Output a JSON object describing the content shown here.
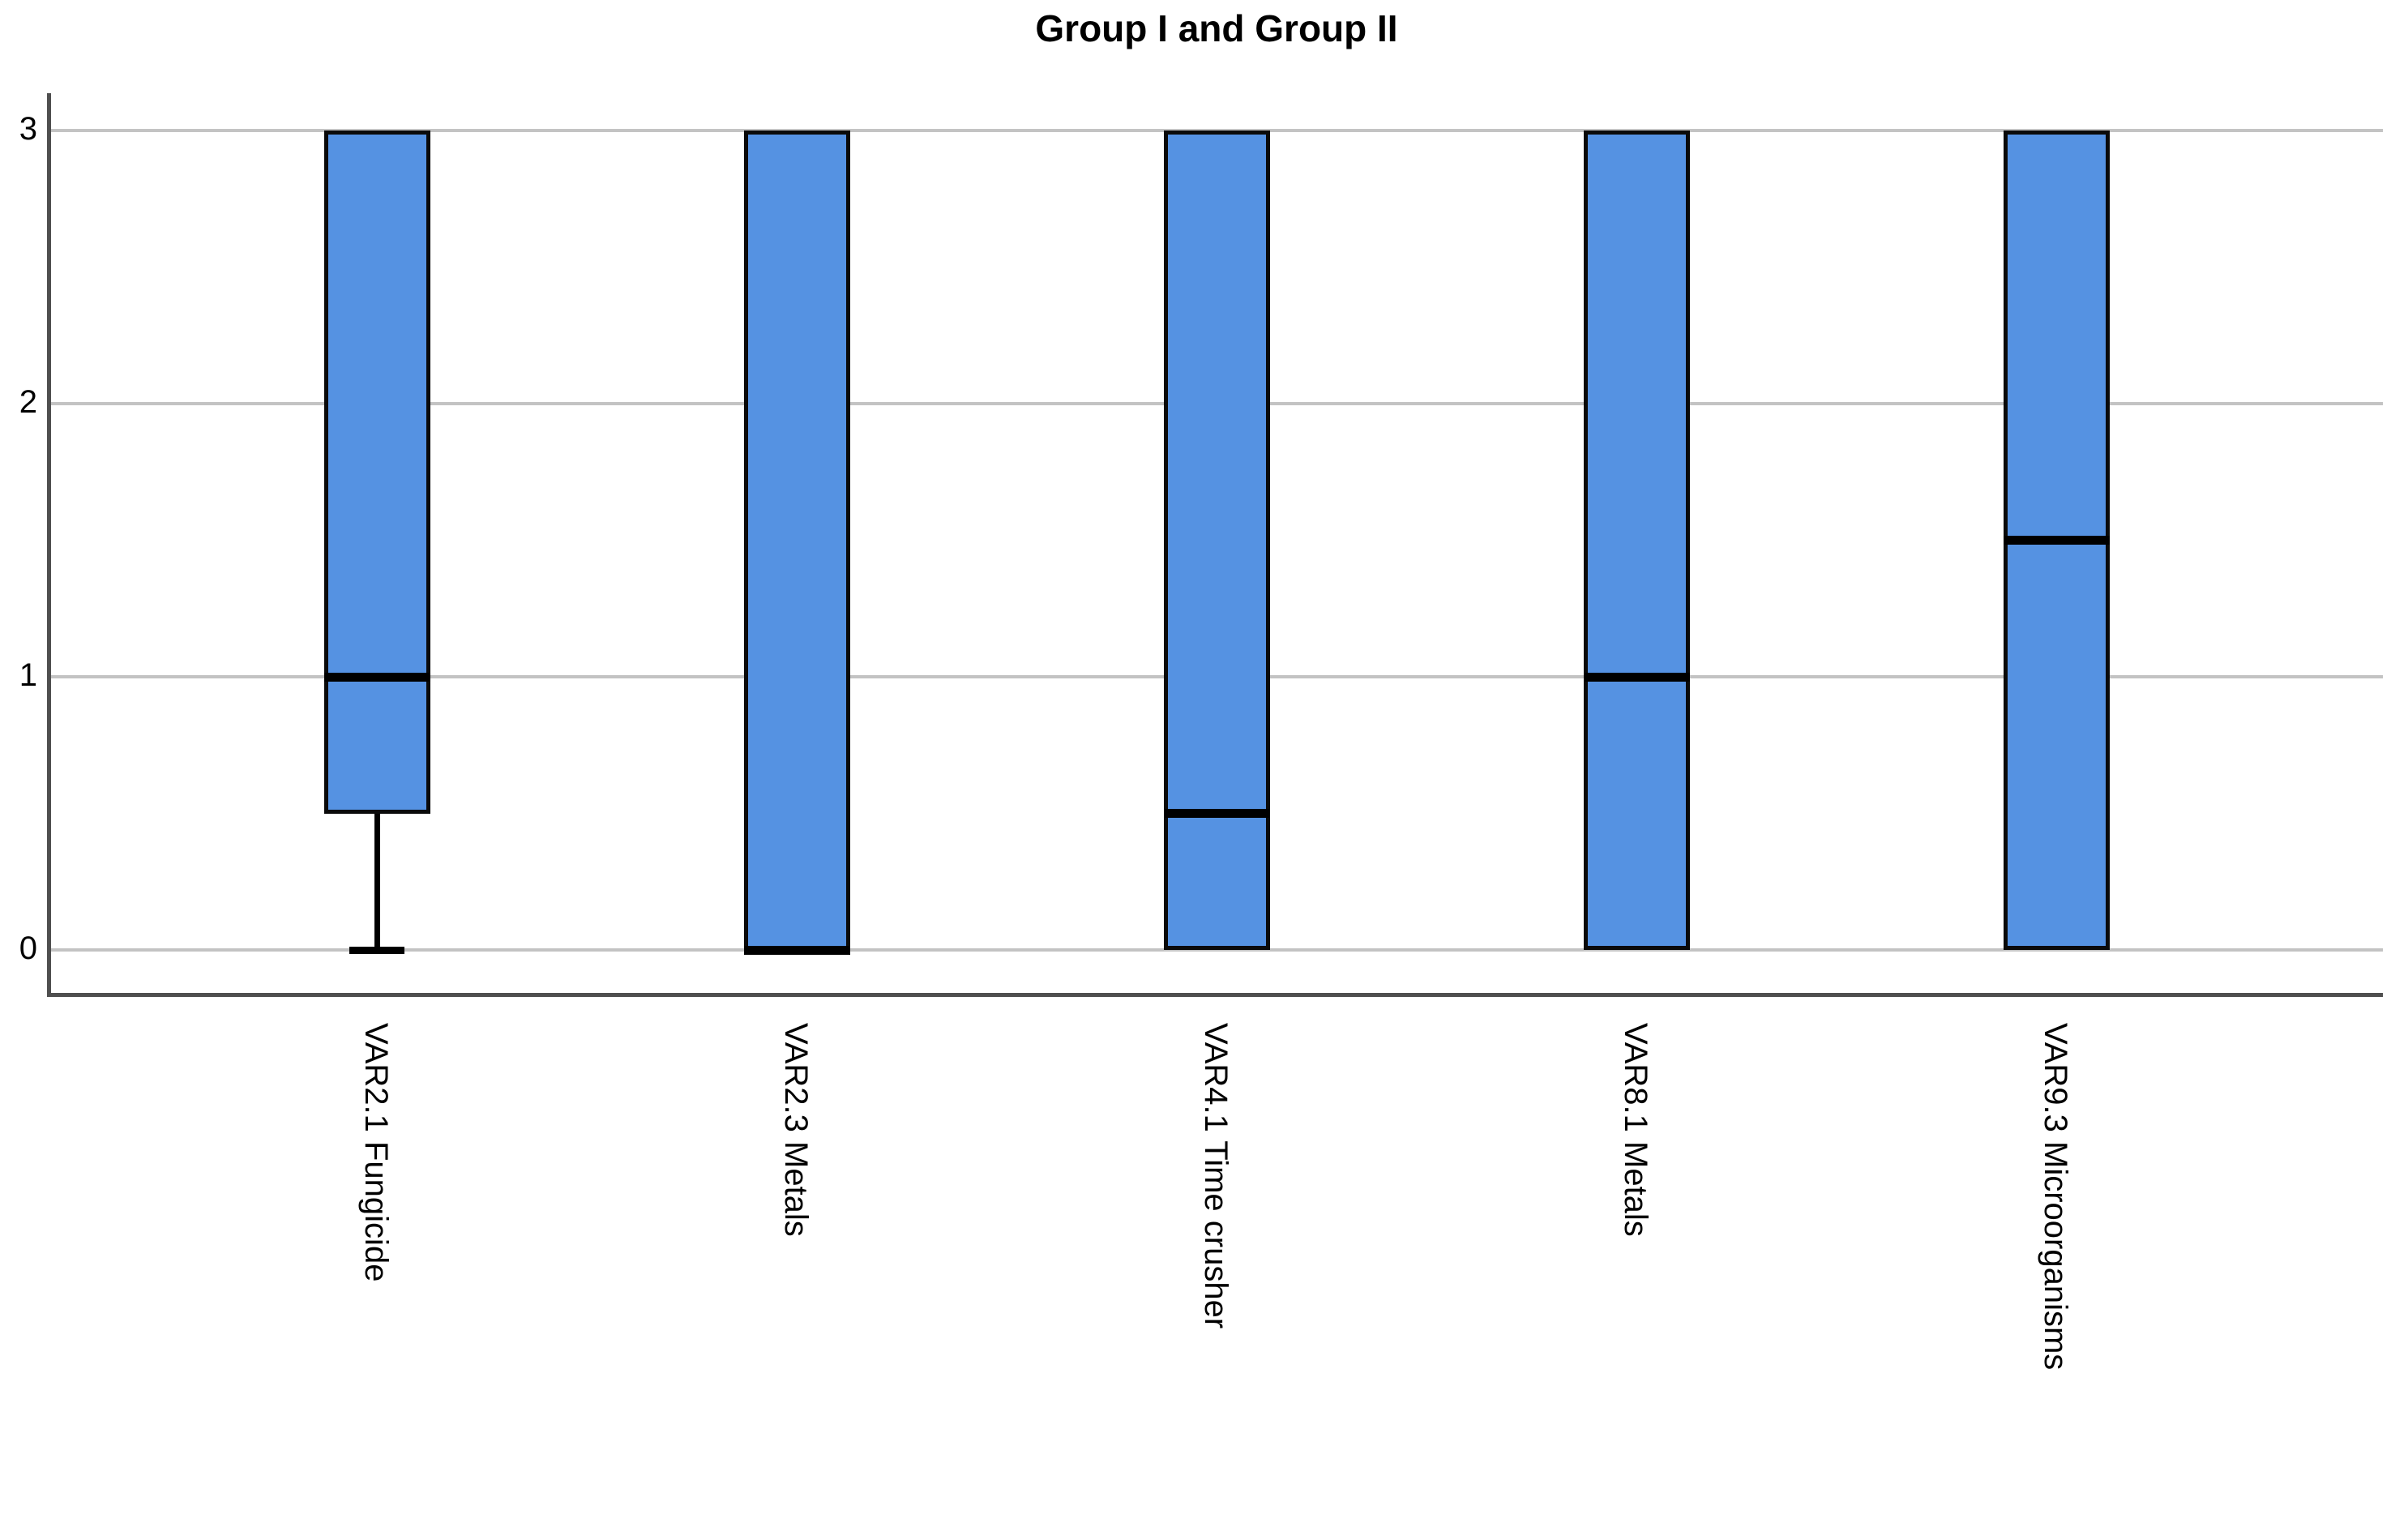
{
  "chart_data": {
    "type": "boxplot",
    "title": "Group I and Group II",
    "categories": [
      "VAR2.1 Fungicide",
      "VAR2.3 Metals",
      "VAR4.1 Time crusher",
      "VAR8.1 Metals",
      "VAR9.3 Microorganisms"
    ],
    "series": [
      {
        "name": "VAR2.1 Fungicide",
        "whisker_low": 0,
        "q1": 0.5,
        "median": 1,
        "q3": 3,
        "whisker_high": 3
      },
      {
        "name": "VAR2.3 Metals",
        "whisker_low": 0,
        "q1": 0,
        "median": 0,
        "q3": 3,
        "whisker_high": 3
      },
      {
        "name": "VAR4.1 Time crusher",
        "whisker_low": 0,
        "q1": 0,
        "median": 0.5,
        "q3": 3,
        "whisker_high": 3
      },
      {
        "name": "VAR8.1 Metals",
        "whisker_low": 0,
        "q1": 0,
        "median": 1,
        "q3": 3,
        "whisker_high": 3
      },
      {
        "name": "VAR9.3 Microorganisms",
        "whisker_low": 0,
        "q1": 0,
        "median": 1.5,
        "q3": 3,
        "whisker_high": 3
      }
    ],
    "xlabel": "",
    "ylabel": "",
    "yticks": [
      0,
      1,
      2,
      3
    ],
    "ylim": [
      0,
      3
    ],
    "grid": true,
    "legend": false,
    "colors": {
      "box_fill": "#5592e2",
      "box_border": "#0a0a0a",
      "median": "#000000",
      "whisker": "#000000",
      "gridline": "#c3c3c3",
      "axis": "#4f4f4f",
      "text": "#000000",
      "background": "#ffffff"
    }
  }
}
